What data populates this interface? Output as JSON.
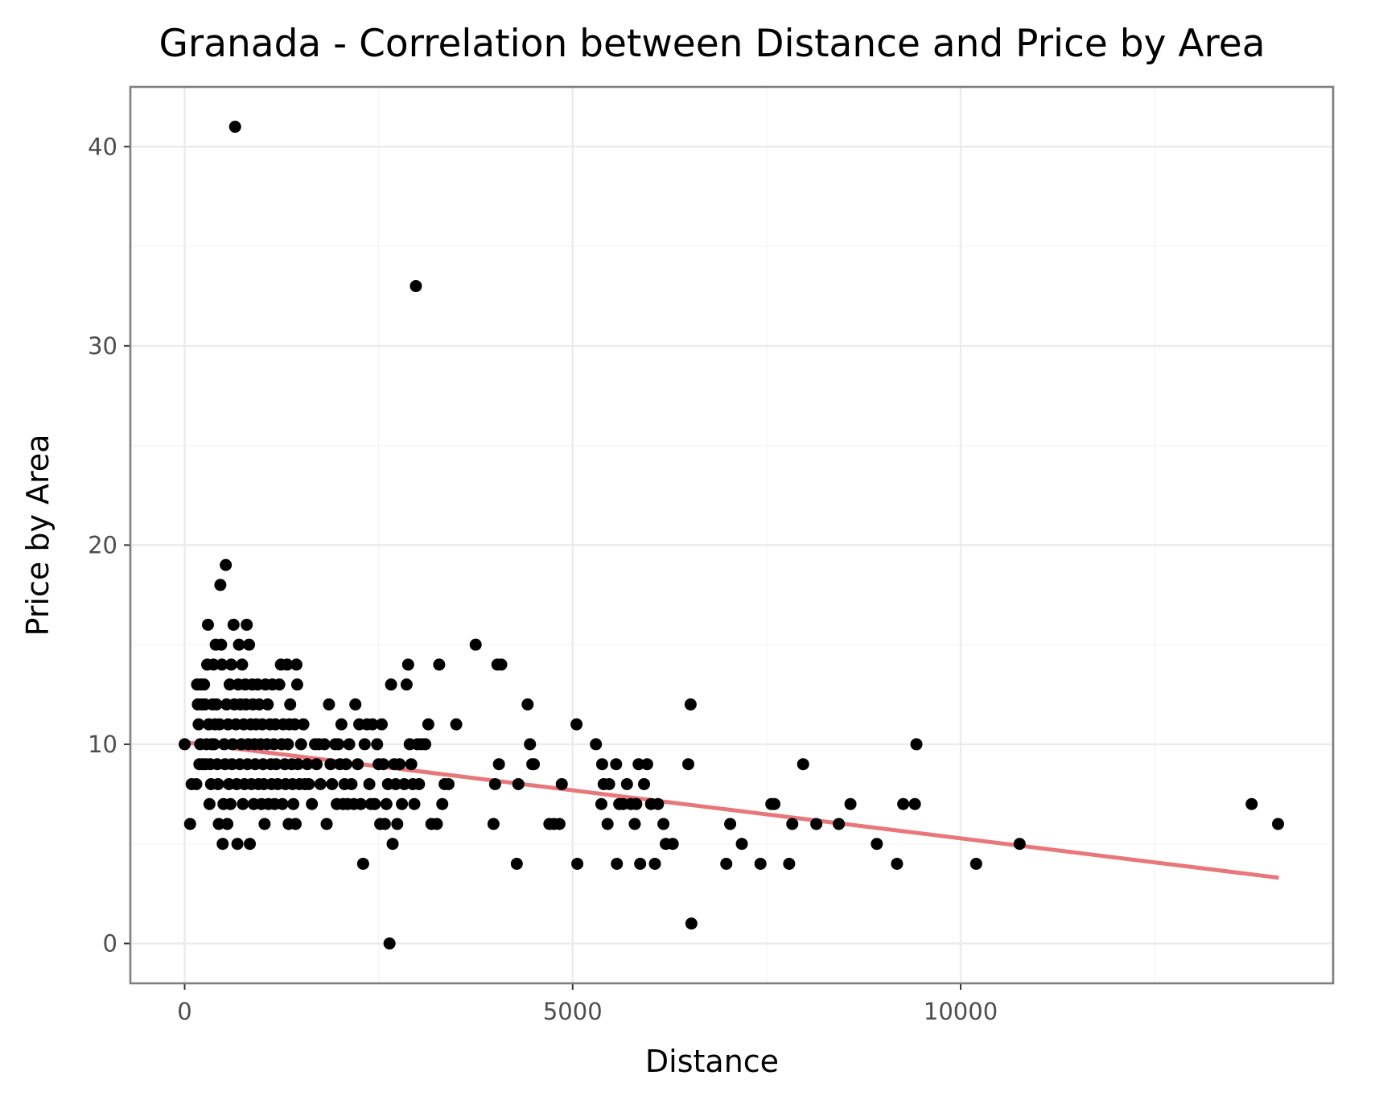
{
  "chart_data": {
    "type": "scatter",
    "title": "Granada - Correlation between Distance and Price by Area",
    "xlabel": "Distance",
    "ylabel": "Price by Area",
    "xlim": [
      -700,
      14800
    ],
    "ylim": [
      -2,
      43
    ],
    "x_ticks": [
      0,
      5000,
      10000
    ],
    "x_tick_labels": [
      "0",
      "5000",
      "10000"
    ],
    "y_ticks": [
      0,
      10,
      20,
      30,
      40
    ],
    "y_tick_labels": [
      "0",
      "10",
      "20",
      "30",
      "40"
    ],
    "grid": true,
    "legend": "none",
    "point_color": "#000000",
    "trend_color": "#e8767a",
    "trend_line": {
      "x": [
        0,
        14100
      ],
      "y": [
        10.1,
        3.3
      ]
    },
    "points": [
      [
        0,
        10
      ],
      [
        70,
        6
      ],
      [
        90,
        8
      ],
      [
        150,
        8
      ],
      [
        160,
        13
      ],
      [
        170,
        12
      ],
      [
        180,
        11
      ],
      [
        190,
        9
      ],
      [
        200,
        10
      ],
      [
        210,
        13
      ],
      [
        220,
        12
      ],
      [
        230,
        9
      ],
      [
        250,
        13
      ],
      [
        260,
        12
      ],
      [
        270,
        9
      ],
      [
        280,
        10
      ],
      [
        290,
        14
      ],
      [
        300,
        16
      ],
      [
        310,
        11
      ],
      [
        320,
        7
      ],
      [
        330,
        9
      ],
      [
        340,
        8
      ],
      [
        350,
        10
      ],
      [
        360,
        12
      ],
      [
        370,
        14
      ],
      [
        380,
        10
      ],
      [
        390,
        11
      ],
      [
        400,
        15
      ],
      [
        410,
        12
      ],
      [
        420,
        9
      ],
      [
        430,
        8
      ],
      [
        440,
        6
      ],
      [
        450,
        11
      ],
      [
        460,
        18
      ],
      [
        470,
        15
      ],
      [
        480,
        14
      ],
      [
        490,
        5
      ],
      [
        500,
        7
      ],
      [
        510,
        10
      ],
      [
        520,
        9
      ],
      [
        530,
        19
      ],
      [
        540,
        12
      ],
      [
        550,
        6
      ],
      [
        560,
        11
      ],
      [
        570,
        8
      ],
      [
        580,
        13
      ],
      [
        590,
        7
      ],
      [
        600,
        14
      ],
      [
        610,
        9
      ],
      [
        620,
        10
      ],
      [
        630,
        16
      ],
      [
        640,
        12
      ],
      [
        650,
        41
      ],
      [
        660,
        11
      ],
      [
        670,
        8
      ],
      [
        680,
        5
      ],
      [
        690,
        13
      ],
      [
        700,
        15
      ],
      [
        710,
        9
      ],
      [
        720,
        12
      ],
      [
        730,
        10
      ],
      [
        740,
        14
      ],
      [
        750,
        7
      ],
      [
        760,
        11
      ],
      [
        770,
        8
      ],
      [
        780,
        13
      ],
      [
        790,
        12
      ],
      [
        800,
        16
      ],
      [
        810,
        9
      ],
      [
        820,
        10
      ],
      [
        830,
        15
      ],
      [
        840,
        5
      ],
      [
        850,
        11
      ],
      [
        860,
        8
      ],
      [
        870,
        13
      ],
      [
        880,
        12
      ],
      [
        890,
        7
      ],
      [
        900,
        10
      ],
      [
        910,
        9
      ],
      [
        920,
        11
      ],
      [
        940,
        13
      ],
      [
        950,
        8
      ],
      [
        960,
        12
      ],
      [
        980,
        10
      ],
      [
        990,
        7
      ],
      [
        1000,
        11
      ],
      [
        1010,
        9
      ],
      [
        1020,
        8
      ],
      [
        1030,
        6
      ],
      [
        1040,
        13
      ],
      [
        1060,
        10
      ],
      [
        1070,
        12
      ],
      [
        1080,
        7
      ],
      [
        1100,
        11
      ],
      [
        1110,
        9
      ],
      [
        1120,
        8
      ],
      [
        1130,
        13
      ],
      [
        1150,
        10
      ],
      [
        1160,
        7
      ],
      [
        1170,
        11
      ],
      [
        1180,
        9
      ],
      [
        1200,
        8
      ],
      [
        1220,
        13
      ],
      [
        1240,
        14
      ],
      [
        1250,
        10
      ],
      [
        1260,
        7
      ],
      [
        1270,
        11
      ],
      [
        1290,
        9
      ],
      [
        1300,
        8
      ],
      [
        1320,
        14
      ],
      [
        1330,
        10
      ],
      [
        1340,
        6
      ],
      [
        1350,
        11
      ],
      [
        1360,
        12
      ],
      [
        1380,
        9
      ],
      [
        1390,
        8
      ],
      [
        1400,
        7
      ],
      [
        1420,
        11
      ],
      [
        1430,
        6
      ],
      [
        1440,
        14
      ],
      [
        1450,
        13
      ],
      [
        1460,
        9
      ],
      [
        1480,
        8
      ],
      [
        1500,
        10
      ],
      [
        1530,
        11
      ],
      [
        1550,
        8
      ],
      [
        1580,
        9
      ],
      [
        1600,
        8
      ],
      [
        1640,
        7
      ],
      [
        1680,
        10
      ],
      [
        1700,
        9
      ],
      [
        1730,
        10
      ],
      [
        1750,
        8
      ],
      [
        1800,
        10
      ],
      [
        1830,
        6
      ],
      [
        1860,
        12
      ],
      [
        1880,
        9
      ],
      [
        1900,
        8
      ],
      [
        1940,
        10
      ],
      [
        1960,
        7
      ],
      [
        1980,
        10
      ],
      [
        2000,
        9
      ],
      [
        2020,
        11
      ],
      [
        2040,
        7
      ],
      [
        2060,
        8
      ],
      [
        2080,
        9
      ],
      [
        2100,
        7
      ],
      [
        2120,
        10
      ],
      [
        2150,
        8
      ],
      [
        2180,
        7
      ],
      [
        2200,
        12
      ],
      [
        2230,
        9
      ],
      [
        2250,
        11
      ],
      [
        2270,
        7
      ],
      [
        2300,
        4
      ],
      [
        2320,
        10
      ],
      [
        2350,
        11
      ],
      [
        2380,
        8
      ],
      [
        2400,
        7
      ],
      [
        2420,
        11
      ],
      [
        2450,
        7
      ],
      [
        2480,
        10
      ],
      [
        2500,
        9
      ],
      [
        2520,
        6
      ],
      [
        2540,
        11
      ],
      [
        2560,
        9
      ],
      [
        2580,
        6
      ],
      [
        2600,
        7
      ],
      [
        2620,
        8
      ],
      [
        2640,
        0
      ],
      [
        2660,
        13
      ],
      [
        2680,
        5
      ],
      [
        2700,
        9
      ],
      [
        2720,
        8
      ],
      [
        2740,
        6
      ],
      [
        2770,
        9
      ],
      [
        2800,
        7
      ],
      [
        2830,
        8
      ],
      [
        2860,
        13
      ],
      [
        2880,
        14
      ],
      [
        2900,
        10
      ],
      [
        2920,
        9
      ],
      [
        2940,
        8
      ],
      [
        2960,
        7
      ],
      [
        2980,
        33
      ],
      [
        3000,
        10
      ],
      [
        3020,
        8
      ],
      [
        3050,
        10
      ],
      [
        3100,
        10
      ],
      [
        3140,
        11
      ],
      [
        3180,
        6
      ],
      [
        3250,
        6
      ],
      [
        3280,
        14
      ],
      [
        3320,
        7
      ],
      [
        3350,
        8
      ],
      [
        3400,
        8
      ],
      [
        3500,
        11
      ],
      [
        3750,
        15
      ],
      [
        3980,
        6
      ],
      [
        4000,
        8
      ],
      [
        4030,
        14
      ],
      [
        4050,
        9
      ],
      [
        4080,
        14
      ],
      [
        4280,
        4
      ],
      [
        4300,
        8
      ],
      [
        4420,
        12
      ],
      [
        4450,
        10
      ],
      [
        4480,
        9
      ],
      [
        4500,
        9
      ],
      [
        4700,
        6
      ],
      [
        4760,
        6
      ],
      [
        4830,
        6
      ],
      [
        4860,
        8
      ],
      [
        5050,
        11
      ],
      [
        5060,
        4
      ],
      [
        5300,
        10
      ],
      [
        5370,
        7
      ],
      [
        5380,
        9
      ],
      [
        5400,
        8
      ],
      [
        5450,
        6
      ],
      [
        5470,
        8
      ],
      [
        5560,
        9
      ],
      [
        5570,
        4
      ],
      [
        5600,
        7
      ],
      [
        5650,
        7
      ],
      [
        5700,
        8
      ],
      [
        5750,
        7
      ],
      [
        5800,
        6
      ],
      [
        5820,
        7
      ],
      [
        5850,
        9
      ],
      [
        5870,
        4
      ],
      [
        5920,
        8
      ],
      [
        5960,
        9
      ],
      [
        6010,
        7
      ],
      [
        6060,
        4
      ],
      [
        6100,
        7
      ],
      [
        6170,
        6
      ],
      [
        6200,
        5
      ],
      [
        6290,
        5
      ],
      [
        6490,
        9
      ],
      [
        6520,
        12
      ],
      [
        6530,
        1
      ],
      [
        6980,
        4
      ],
      [
        7030,
        6
      ],
      [
        7180,
        5
      ],
      [
        7420,
        4
      ],
      [
        7560,
        7
      ],
      [
        7600,
        7
      ],
      [
        7790,
        4
      ],
      [
        7830,
        6
      ],
      [
        7970,
        9
      ],
      [
        8140,
        6
      ],
      [
        8430,
        6
      ],
      [
        8580,
        7
      ],
      [
        8920,
        5
      ],
      [
        9180,
        4
      ],
      [
        9260,
        7
      ],
      [
        9410,
        7
      ],
      [
        9430,
        10
      ],
      [
        10200,
        4
      ],
      [
        10760,
        5
      ],
      [
        13750,
        7
      ],
      [
        14090,
        6
      ]
    ]
  }
}
